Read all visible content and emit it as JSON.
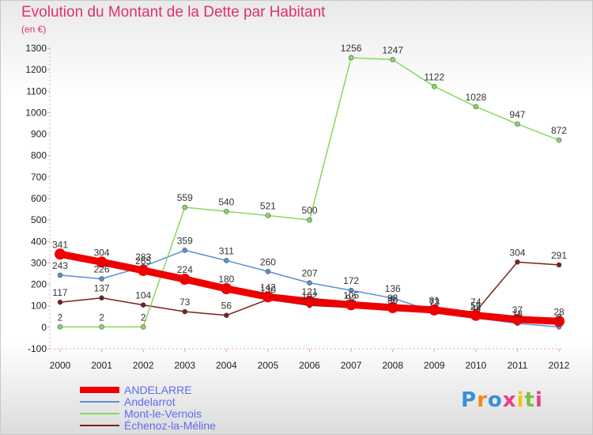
{
  "chart_data": {
    "type": "line",
    "title": "Evolution du Montant de la Dette par Habitant",
    "ylabel": "(en €)",
    "xlabel": "",
    "categories": [
      "2000",
      "2001",
      "2002",
      "2003",
      "2004",
      "2005",
      "2006",
      "2007",
      "2008",
      "2009",
      "2010",
      "2011",
      "2012"
    ],
    "ylim": [
      -100,
      1300
    ],
    "yticks": [
      -100,
      0,
      100,
      200,
      300,
      400,
      500,
      600,
      700,
      800,
      900,
      1000,
      1100,
      1200,
      1300
    ],
    "grid": false,
    "legend_position": "bottom-left",
    "series": [
      {
        "name": "ANDELARRE",
        "color": "#ee0000",
        "values": [
          341,
          304,
          265,
          224,
          180,
          142,
          121,
          105,
          92,
          81,
          56,
          37,
          28
        ]
      },
      {
        "name": "Andelarrot",
        "color": "#5b8fd0",
        "values": [
          243,
          226,
          283,
          359,
          311,
          260,
          207,
          172,
          136,
          73,
          44,
          18,
          2
        ]
      },
      {
        "name": "Mont-le-Vernois",
        "color": "#88d860",
        "values": [
          2,
          2,
          2,
          559,
          540,
          521,
          500,
          1256,
          1247,
          1122,
          1028,
          947,
          872
        ]
      },
      {
        "name": "Échenoz-la-Méline",
        "color": "#7a1e1e",
        "values": [
          117,
          137,
          104,
          73,
          56,
          130,
          102,
          92,
          80,
          73,
          74,
          304,
          291
        ]
      }
    ]
  },
  "logo": {
    "text": "Proxiti",
    "letter_colors": [
      "#3a8fd8",
      "#f08a1c",
      "#3a8fd8",
      "#e83e8c",
      "#f0c419",
      "#7ac142",
      "#e83e8c"
    ]
  }
}
